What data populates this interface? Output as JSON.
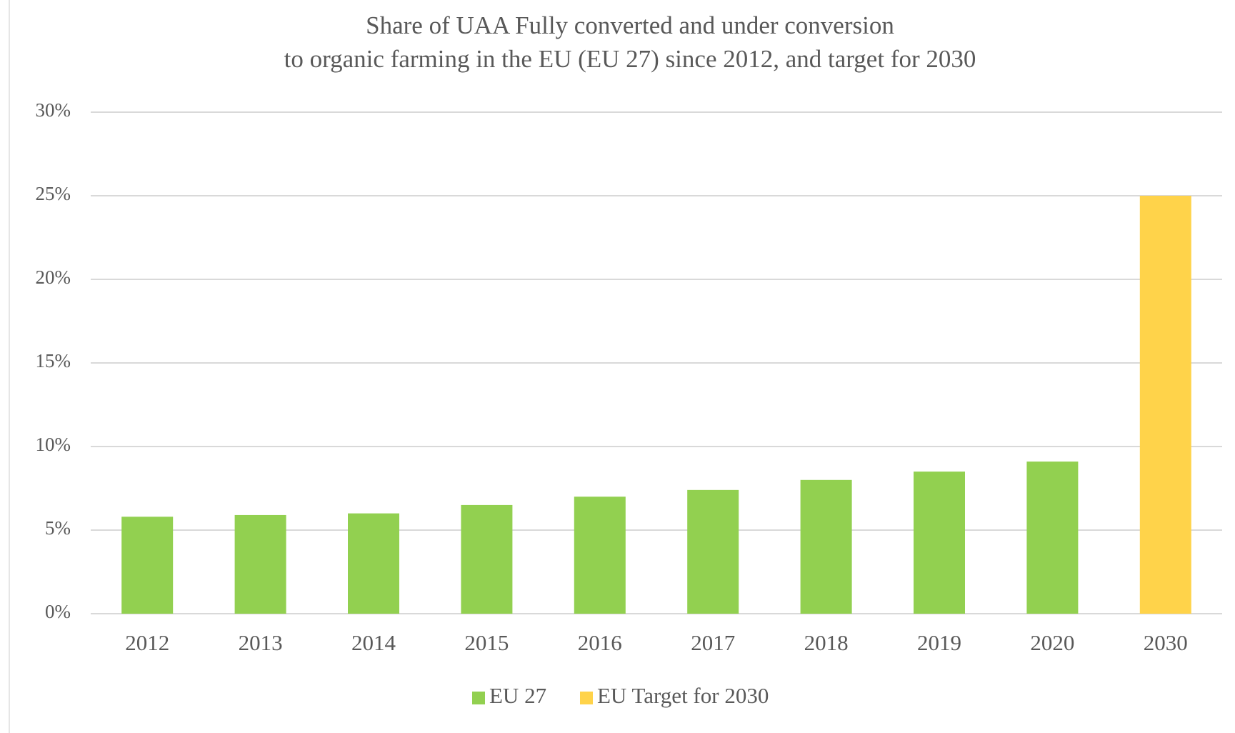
{
  "chart_data": {
    "type": "bar",
    "title": [
      "Share of UAA Fully converted and under conversion",
      "to organic farming in the EU (EU 27) since 2012, and target for 2030"
    ],
    "categories": [
      "2012",
      "2013",
      "2014",
      "2015",
      "2016",
      "2017",
      "2018",
      "2019",
      "2020",
      "2030"
    ],
    "series": [
      {
        "name": "EU 27",
        "color": "#92d050",
        "values": [
          5.8,
          5.9,
          6.0,
          6.5,
          7.0,
          7.4,
          8.0,
          8.5,
          9.1,
          null
        ]
      },
      {
        "name": "EU Target for 2030",
        "color": "#ffd34a",
        "values": [
          null,
          null,
          null,
          null,
          null,
          null,
          null,
          null,
          null,
          25
        ]
      }
    ],
    "ylim": [
      0,
      30
    ],
    "yticks": [
      {
        "value": 0,
        "label": "0%"
      },
      {
        "value": 5,
        "label": "5%"
      },
      {
        "value": 10,
        "label": "10%"
      },
      {
        "value": 15,
        "label": "15%"
      },
      {
        "value": 20,
        "label": "20%"
      },
      {
        "value": 25,
        "label": "25%"
      },
      {
        "value": 30,
        "label": "30%"
      }
    ],
    "grid": true,
    "legend": "bottom"
  }
}
